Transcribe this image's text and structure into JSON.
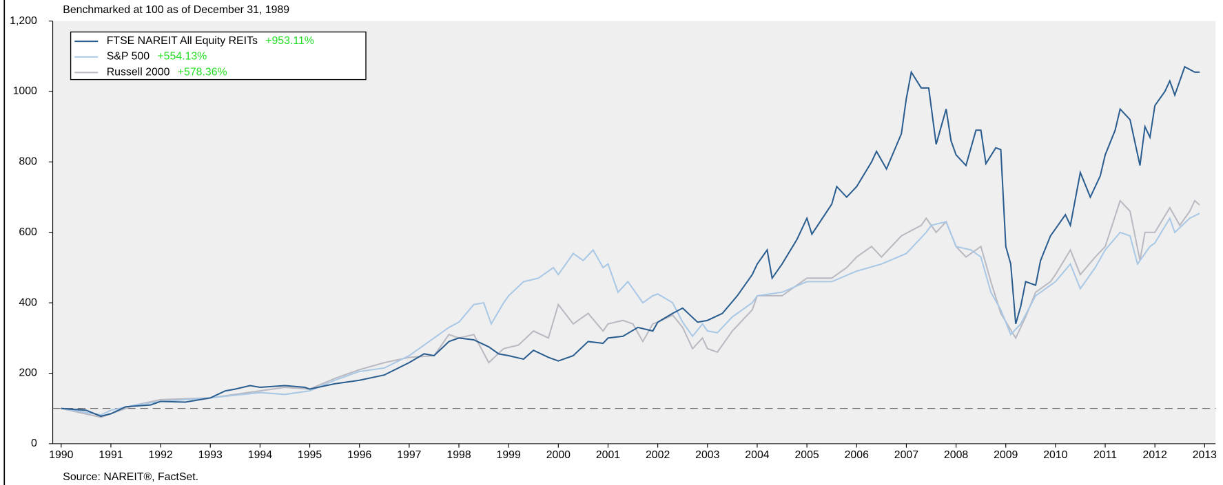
{
  "chart_data": {
    "type": "line",
    "subtitle": "Benchmarked at 100 as of December 31, 1989",
    "source": "Source: NAREIT®, FactSet.",
    "xlim": [
      1989.83,
      2013.22
    ],
    "xticks": [
      1990,
      1991,
      1992,
      1993,
      1994,
      1995,
      1996,
      1997,
      1998,
      1999,
      2000,
      2001,
      2002,
      2003,
      2004,
      2005,
      2006,
      2007,
      2008,
      2009,
      2010,
      2011,
      2012,
      2013
    ],
    "ylim": [
      0,
      1200
    ],
    "yticks": [
      0,
      200,
      400,
      600,
      800,
      1000,
      {
        "value": 1200,
        "label": "1,200"
      }
    ],
    "yticks_fix": null,
    "hline": 100,
    "series": [
      {
        "name": "FTSE NAREIT All Equity REITs",
        "return": "+953.11%",
        "color": "#2a5d8f",
        "x": [
          1990,
          1990.5,
          1990.8,
          1991,
          1991.3,
          1991.8,
          1992,
          1992.5,
          1993,
          1993.3,
          1993.5,
          1993.8,
          1994,
          1994.5,
          1994.9,
          1995,
          1995.5,
          1996,
          1996.5,
          1997,
          1997.3,
          1997.5,
          1997.8,
          1998,
          1998.3,
          1998.6,
          1998.8,
          1999,
          1999.3,
          1999.5,
          1999.8,
          2000,
          2000.3,
          2000.6,
          2000.9,
          2001,
          2001.3,
          2001.6,
          2001.9,
          2002,
          2002.3,
          2002.5,
          2002.8,
          2003,
          2003.3,
          2003.6,
          2003.9,
          2004,
          2004.2,
          2004.3,
          2004.5,
          2004.8,
          2005,
          2005.1,
          2005.5,
          2005.6,
          2005.8,
          2006,
          2006.3,
          2006.4,
          2006.6,
          2006.9,
          2007,
          2007.1,
          2007.3,
          2007.45,
          2007.6,
          2007.8,
          2007.9,
          2008,
          2008.2,
          2008.4,
          2008.5,
          2008.6,
          2008.8,
          2008.9,
          2009,
          2009.1,
          2009.2,
          2009.3,
          2009.4,
          2009.6,
          2009.7,
          2009.9,
          2010,
          2010.2,
          2010.3,
          2010.5,
          2010.7,
          2010.9,
          2011,
          2011.2,
          2011.3,
          2011.5,
          2011.7,
          2011.8,
          2011.9,
          2012,
          2012.2,
          2012.3,
          2012.4,
          2012.6,
          2012.8,
          2012.9
        ],
        "values": [
          100,
          95,
          78,
          85,
          105,
          110,
          120,
          118,
          130,
          150,
          155,
          165,
          160,
          165,
          160,
          155,
          170,
          180,
          195,
          230,
          255,
          250,
          290,
          300,
          295,
          275,
          255,
          250,
          240,
          265,
          245,
          235,
          250,
          290,
          285,
          300,
          305,
          330,
          320,
          345,
          370,
          385,
          345,
          350,
          370,
          420,
          480,
          510,
          550,
          470,
          510,
          580,
          640,
          595,
          680,
          730,
          700,
          730,
          800,
          830,
          780,
          880,
          980,
          1055,
          1010,
          1010,
          850,
          950,
          860,
          820,
          790,
          890,
          890,
          795,
          840,
          835,
          560,
          510,
          340,
          390,
          460,
          450,
          520,
          590,
          610,
          650,
          620,
          770,
          700,
          760,
          820,
          890,
          950,
          920,
          790,
          900,
          870,
          960,
          1000,
          1030,
          990,
          1070,
          1055,
          1055
        ]
      },
      {
        "name": "S&P 500",
        "return": "+554.13%",
        "color": "#a9c8e6",
        "x": [
          1990,
          1990.8,
          1991,
          1991.5,
          1992,
          1993,
          1994,
          1994.5,
          1995,
          1995.5,
          1996,
          1996.5,
          1997,
          1997.5,
          1997.8,
          1998,
          1998.3,
          1998.5,
          1998.65,
          1998.9,
          1999,
          1999.3,
          1999.6,
          1999.9,
          2000,
          2000.3,
          2000.5,
          2000.7,
          2000.9,
          2001,
          2001.2,
          2001.4,
          2001.7,
          2001.9,
          2002,
          2002.3,
          2002.5,
          2002.7,
          2002.9,
          2003,
          2003.2,
          2003.5,
          2003.9,
          2004,
          2004.5,
          2005,
          2005.5,
          2006,
          2006.5,
          2007,
          2007.4,
          2007.5,
          2007.8,
          2008,
          2008.3,
          2008.5,
          2008.7,
          2008.9,
          2009.1,
          2009.3,
          2009.6,
          2010,
          2010.3,
          2010.5,
          2010.8,
          2011,
          2011.3,
          2011.5,
          2011.65,
          2011.9,
          2012,
          2012.3,
          2012.4,
          2012.7,
          2012.9
        ],
        "values": [
          100,
          82,
          95,
          110,
          120,
          130,
          145,
          140,
          150,
          180,
          205,
          215,
          250,
          300,
          330,
          345,
          395,
          400,
          340,
          400,
          420,
          460,
          470,
          500,
          480,
          540,
          520,
          550,
          500,
          510,
          430,
          460,
          400,
          420,
          425,
          400,
          345,
          305,
          340,
          320,
          315,
          360,
          400,
          420,
          430,
          460,
          460,
          490,
          510,
          540,
          600,
          620,
          630,
          560,
          550,
          530,
          430,
          380,
          310,
          340,
          420,
          460,
          510,
          440,
          500,
          550,
          600,
          590,
          510,
          560,
          570,
          640,
          600,
          640,
          654
        ]
      },
      {
        "name": "Russell 2000",
        "return": "+578.36%",
        "color": "#b9b9c2",
        "x": [
          1990,
          1990.8,
          1991,
          1991.5,
          1992,
          1993,
          1994,
          1994.5,
          1995,
          1995.5,
          1996,
          1996.5,
          1997,
          1997.5,
          1997.8,
          1998,
          1998.3,
          1998.6,
          1998.9,
          1999.2,
          1999.5,
          1999.8,
          2000,
          2000.3,
          2000.6,
          2000.9,
          2001,
          2001.3,
          2001.5,
          2001.7,
          2001.9,
          2002,
          2002.3,
          2002.5,
          2002.7,
          2002.9,
          2003,
          2003.2,
          2003.5,
          2003.9,
          2004,
          2004.5,
          2005,
          2005.5,
          2005.8,
          2006,
          2006.3,
          2006.5,
          2006.9,
          2007.3,
          2007.4,
          2007.6,
          2007.8,
          2008,
          2008.2,
          2008.5,
          2008.7,
          2008.9,
          2009.2,
          2009.4,
          2009.6,
          2009.9,
          2010,
          2010.3,
          2010.5,
          2010.8,
          2011,
          2011.3,
          2011.5,
          2011.7,
          2011.8,
          2012,
          2012.3,
          2012.5,
          2012.7,
          2012.8,
          2012.9
        ],
        "values": [
          100,
          75,
          85,
          110,
          125,
          130,
          150,
          160,
          155,
          185,
          210,
          230,
          245,
          250,
          310,
          300,
          310,
          230,
          270,
          280,
          320,
          300,
          395,
          340,
          370,
          320,
          340,
          350,
          340,
          290,
          340,
          345,
          365,
          330,
          270,
          300,
          270,
          260,
          320,
          380,
          420,
          420,
          470,
          470,
          500,
          530,
          560,
          530,
          590,
          620,
          640,
          600,
          630,
          560,
          530,
          560,
          460,
          370,
          300,
          360,
          430,
          460,
          480,
          550,
          480,
          530,
          560,
          690,
          660,
          520,
          600,
          600,
          670,
          620,
          660,
          690,
          678
        ]
      }
    ]
  }
}
